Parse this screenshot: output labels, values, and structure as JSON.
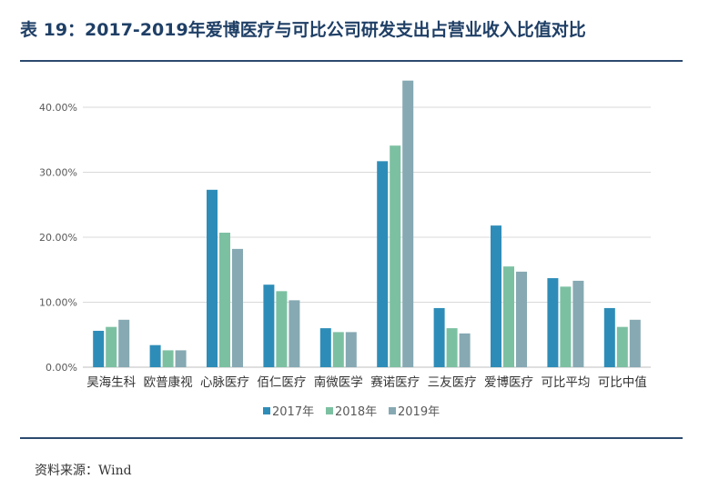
{
  "title": "表 19：2017-2019年爱博医疗与可比公司研发支出占营业收入比值对比",
  "source": "资料来源：Wind",
  "chart_data": {
    "type": "bar",
    "categories": [
      "昊海生科",
      "欧普康视",
      "心脉医疗",
      "佰仁医疗",
      "南微医学",
      "赛诺医疗",
      "三友医疗",
      "爱博医疗",
      "可比平均",
      "可比中值"
    ],
    "series": [
      {
        "name": "2017年",
        "color": "#2e8db8",
        "values": [
          5.6,
          3.4,
          27.3,
          12.7,
          6.0,
          31.7,
          9.1,
          21.8,
          13.7,
          9.1
        ]
      },
      {
        "name": "2018年",
        "color": "#7cc0a2",
        "values": [
          6.2,
          2.6,
          20.7,
          11.7,
          5.4,
          34.1,
          6.0,
          15.5,
          12.4,
          6.2
        ]
      },
      {
        "name": "2019年",
        "color": "#86a9b3",
        "values": [
          7.3,
          2.6,
          18.2,
          10.3,
          5.4,
          44.1,
          5.2,
          14.7,
          13.3,
          7.3
        ]
      }
    ],
    "yticks": [
      "0.00%",
      "10.00%",
      "20.00%",
      "30.00%",
      "40.00%"
    ],
    "ylim": [
      0,
      45
    ],
    "unit": "%",
    "grid": true,
    "legend": "bottom"
  }
}
